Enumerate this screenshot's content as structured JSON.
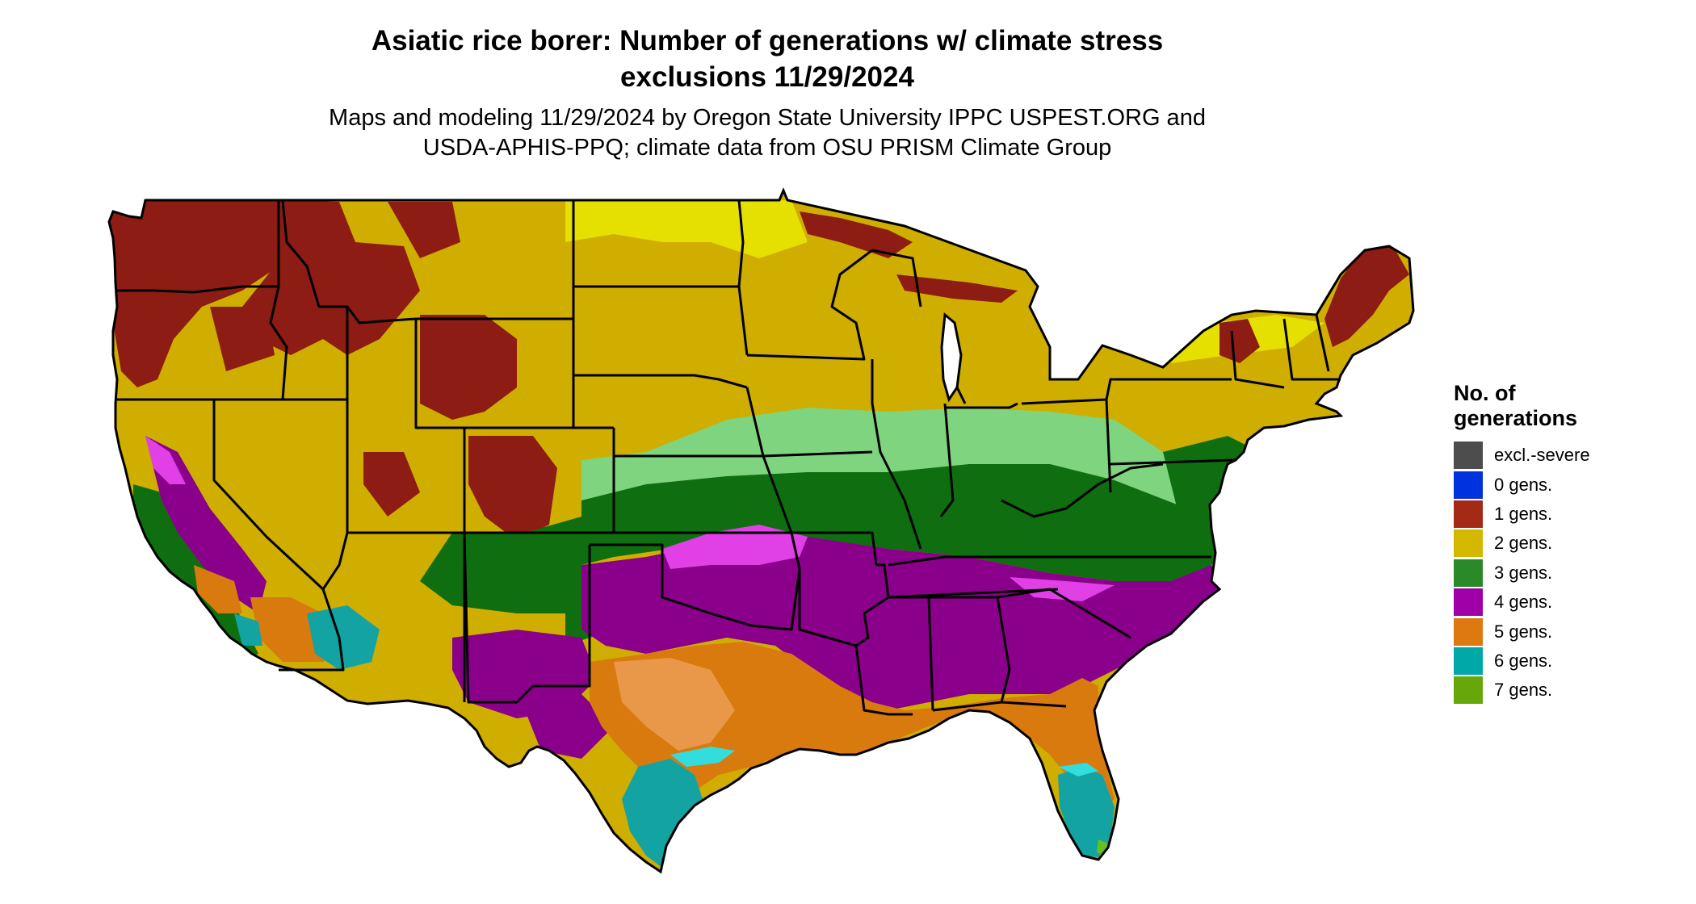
{
  "title": {
    "line1": "Asiatic rice borer: Number of generations w/ climate stress",
    "line2": "exclusions 11/29/2024"
  },
  "subtitle": {
    "line1": "Maps and modeling 11/29/2024 by Oregon State University IPPC USPEST.ORG and",
    "line2": "USDA-APHIS-PPQ; climate data from OSU PRISM Climate Group"
  },
  "legend": {
    "title_line1": "No. of",
    "title_line2": "generations",
    "items": [
      {
        "label": "excl.-severe",
        "color": "#4d4d4d"
      },
      {
        "label": "0 gens.",
        "color": "#0033dd"
      },
      {
        "label": "1 gens.",
        "color": "#a52a16"
      },
      {
        "label": "2 gens.",
        "color": "#d4b800"
      },
      {
        "label": "3 gens.",
        "color": "#2a8a2a"
      },
      {
        "label": "4 gens.",
        "color": "#a000a8"
      },
      {
        "label": "5 gens.",
        "color": "#de7810"
      },
      {
        "label": "6 gens.",
        "color": "#00a8a8"
      },
      {
        "label": "7 gens.",
        "color": "#66a80a"
      }
    ]
  },
  "map_colors": {
    "dark_red": "#8c1c14",
    "yellow": "#cfae00",
    "bright_yellow": "#e6e000",
    "light_green": "#7fd47f",
    "dark_green": "#0f6e0f",
    "purple": "#8b008b",
    "magenta": "#e040e6",
    "orange": "#d97a0e",
    "light_orange": "#e89848",
    "teal": "#14a3a3",
    "cyan": "#33dddd",
    "lime": "#66c020",
    "border": "#000000"
  }
}
